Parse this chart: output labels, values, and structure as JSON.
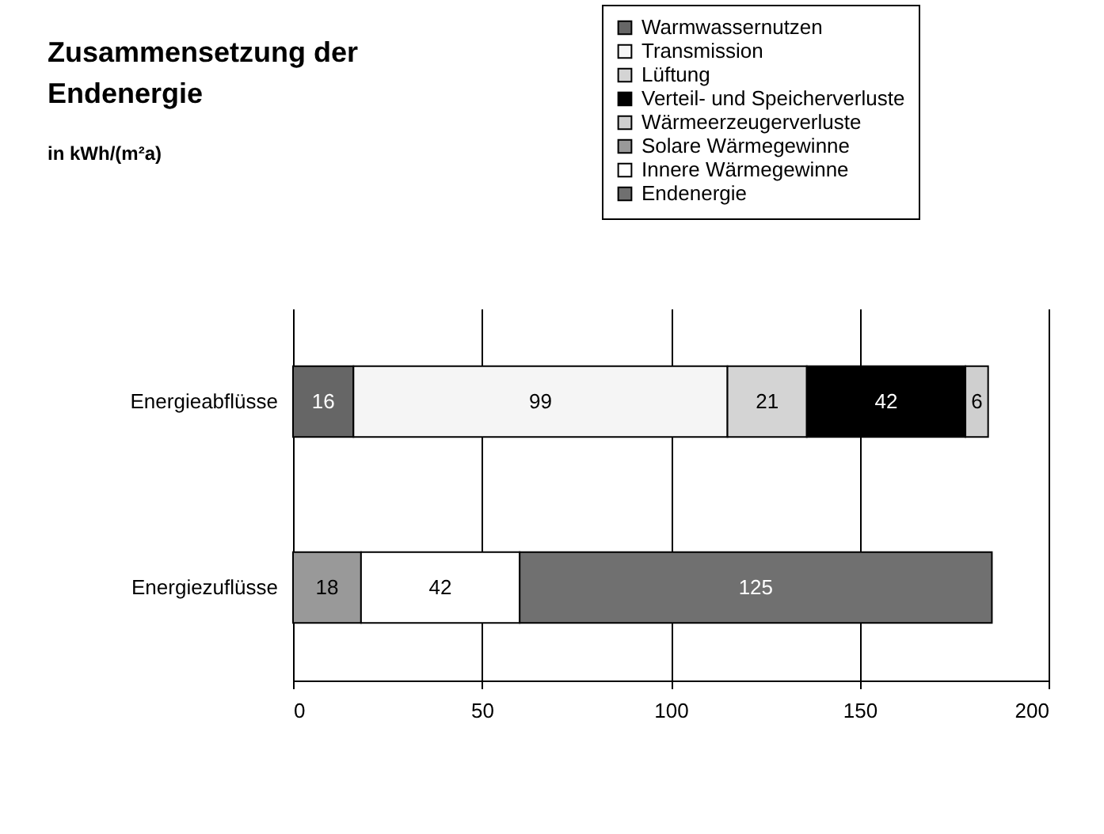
{
  "chart_data": {
    "type": "bar",
    "orientation": "horizontal",
    "stacked": true,
    "title": "Zusammensetzung der\nEndenergie",
    "subtitle": "in kWh/(m²a)",
    "categories": [
      "Energieabflüsse",
      "Energiezuflüsse"
    ],
    "series": [
      {
        "name": "Warmwassernutzen",
        "color": "#666666",
        "values": [
          16,
          null
        ]
      },
      {
        "name": "Transmission",
        "color": "#f5f5f5",
        "values": [
          99,
          null
        ]
      },
      {
        "name": "Lüftung",
        "color": "#d4d4d4",
        "values": [
          21,
          null
        ]
      },
      {
        "name": "Verteil- und Speicherverluste",
        "color": "#000000",
        "values": [
          42,
          null
        ]
      },
      {
        "name": "Wärmeerzeugerverluste",
        "color": "#cfcfcf",
        "values": [
          6,
          null
        ]
      },
      {
        "name": "Solare Wärmegewinne",
        "color": "#999999",
        "values": [
          null,
          18
        ]
      },
      {
        "name": "Innere Wärmegewinne",
        "color": "#ffffff",
        "values": [
          null,
          42
        ]
      },
      {
        "name": "Endenergie",
        "color": "#707070",
        "values": [
          null,
          125
        ]
      }
    ],
    "xlim": [
      0,
      200
    ],
    "xticks": [
      0,
      50,
      100,
      150,
      200
    ],
    "grid": "x",
    "legend": "top right",
    "data_labels": true
  }
}
